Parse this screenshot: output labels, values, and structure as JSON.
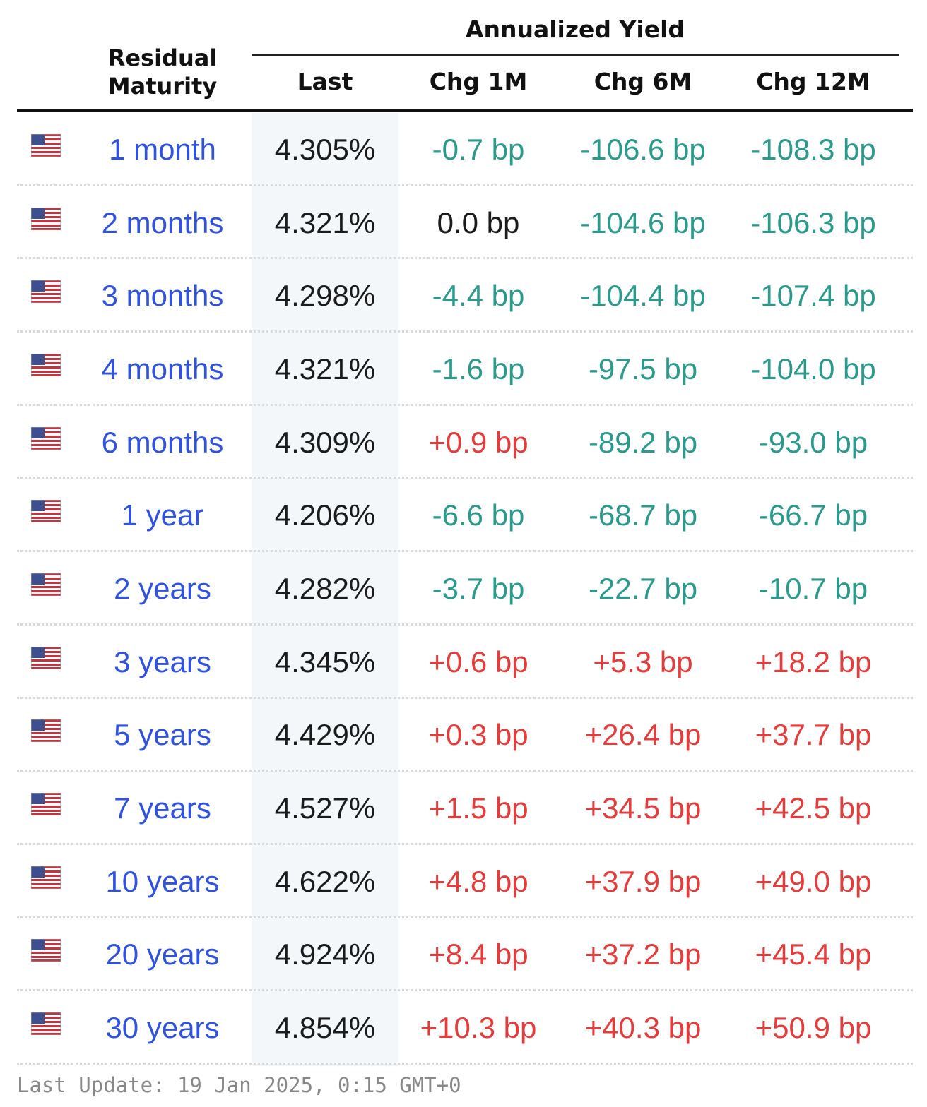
{
  "header": {
    "group_title": "Annualized Yield",
    "residual_maturity": "Residual Maturity",
    "last": "Last",
    "chg_1m": "Chg 1M",
    "chg_6m": "Chg 6M",
    "chg_12m": "Chg 12M"
  },
  "flag_icon": "us-flag-icon",
  "colors": {
    "maturity_link": "#2f52e0",
    "negative": "#2a9a8c",
    "positive": "#e53b3b",
    "neutral": "#1b1b1b"
  },
  "rows": [
    {
      "maturity": "1 month",
      "last": "4.305%",
      "chg_1m": "-0.7 bp",
      "chg_6m": "-106.6 bp",
      "chg_12m": "-108.3 bp"
    },
    {
      "maturity": "2 months",
      "last": "4.321%",
      "chg_1m": "0.0 bp",
      "chg_6m": "-104.6 bp",
      "chg_12m": "-106.3 bp"
    },
    {
      "maturity": "3 months",
      "last": "4.298%",
      "chg_1m": "-4.4 bp",
      "chg_6m": "-104.4 bp",
      "chg_12m": "-107.4 bp"
    },
    {
      "maturity": "4 months",
      "last": "4.321%",
      "chg_1m": "-1.6 bp",
      "chg_6m": "-97.5 bp",
      "chg_12m": "-104.0 bp"
    },
    {
      "maturity": "6 months",
      "last": "4.309%",
      "chg_1m": "+0.9 bp",
      "chg_6m": "-89.2 bp",
      "chg_12m": "-93.0 bp"
    },
    {
      "maturity": "1 year",
      "last": "4.206%",
      "chg_1m": "-6.6 bp",
      "chg_6m": "-68.7 bp",
      "chg_12m": "-66.7 bp"
    },
    {
      "maturity": "2 years",
      "last": "4.282%",
      "chg_1m": "-3.7 bp",
      "chg_6m": "-22.7 bp",
      "chg_12m": "-10.7 bp"
    },
    {
      "maturity": "3 years",
      "last": "4.345%",
      "chg_1m": "+0.6 bp",
      "chg_6m": "+5.3 bp",
      "chg_12m": "+18.2 bp"
    },
    {
      "maturity": "5 years",
      "last": "4.429%",
      "chg_1m": "+0.3 bp",
      "chg_6m": "+26.4 bp",
      "chg_12m": "+37.7 bp"
    },
    {
      "maturity": "7 years",
      "last": "4.527%",
      "chg_1m": "+1.5 bp",
      "chg_6m": "+34.5 bp",
      "chg_12m": "+42.5 bp"
    },
    {
      "maturity": "10 years",
      "last": "4.622%",
      "chg_1m": "+4.8 bp",
      "chg_6m": "+37.9 bp",
      "chg_12m": "+49.0 bp"
    },
    {
      "maturity": "20 years",
      "last": "4.924%",
      "chg_1m": "+8.4 bp",
      "chg_6m": "+37.2 bp",
      "chg_12m": "+45.4 bp"
    },
    {
      "maturity": "30 years",
      "last": "4.854%",
      "chg_1m": "+10.3 bp",
      "chg_6m": "+40.3 bp",
      "chg_12m": "+50.9 bp"
    }
  ],
  "footer": {
    "last_update": "Last Update: 19 Jan 2025, 0:15 GMT+0"
  }
}
